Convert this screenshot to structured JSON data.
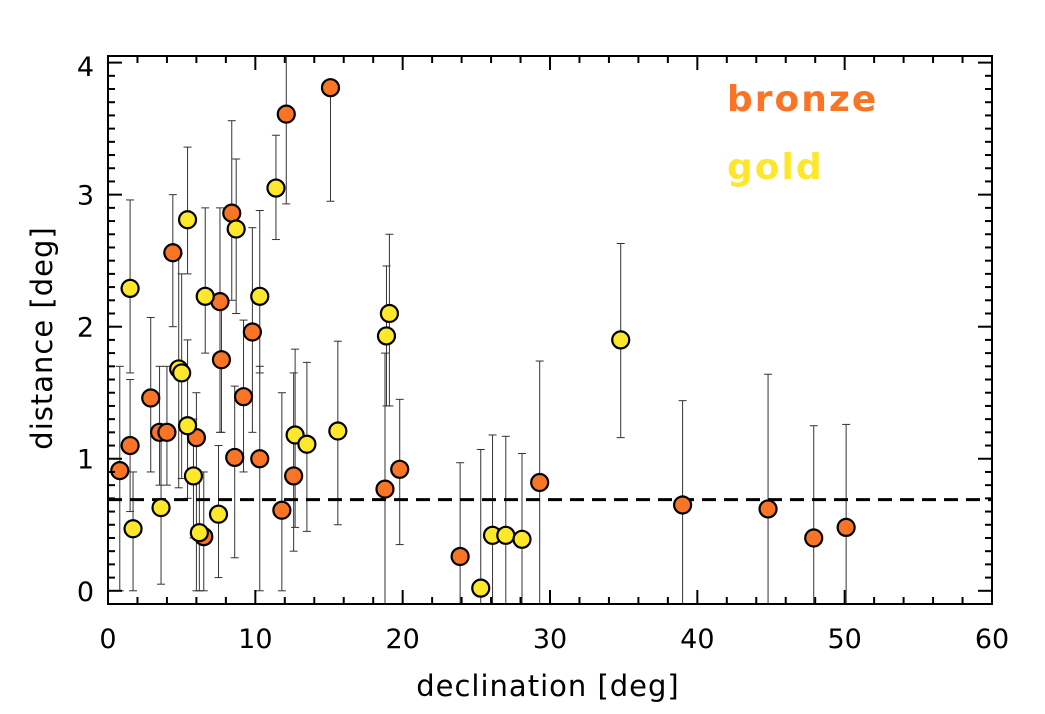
{
  "chart_data": {
    "type": "scatter",
    "title": "",
    "xlabel": "declination [deg]",
    "ylabel": "distance [deg]",
    "xlim": [
      0,
      60
    ],
    "ylim": [
      -0.1,
      4.05
    ],
    "xticks": [
      0,
      10,
      20,
      30,
      40,
      50,
      60
    ],
    "yticks": [
      0,
      1,
      2,
      3,
      4
    ],
    "threshold_line": {
      "y": 0.69,
      "style": "dashed"
    },
    "legend": {
      "placement": "top-right"
    },
    "colors": {
      "bronze": "#F97424",
      "gold": "#FDE72A",
      "outline": "#000000",
      "errorbar": "#333333"
    },
    "series": [
      {
        "name": "bronze",
        "points": [
          {
            "x": 0.8,
            "y": 0.91,
            "lo": 0.0,
            "hi": 1.7
          },
          {
            "x": 1.5,
            "y": 1.1,
            "lo": 0.6,
            "hi": 1.6
          },
          {
            "x": 2.9,
            "y": 1.46,
            "lo": 0.9,
            "hi": 2.07
          },
          {
            "x": 3.5,
            "y": 1.2,
            "lo": 0.8,
            "hi": 1.7
          },
          {
            "x": 4.0,
            "y": 1.2,
            "lo": 0.8,
            "hi": 1.7
          },
          {
            "x": 4.4,
            "y": 2.56,
            "lo": 2.0,
            "hi": 3.0
          },
          {
            "x": 6.0,
            "y": 1.16,
            "lo": 0.0,
            "hi": 1.5
          },
          {
            "x": 6.5,
            "y": 0.41,
            "lo": 0.0,
            "hi": 0.9
          },
          {
            "x": 7.6,
            "y": 2.19,
            "lo": 1.2,
            "hi": 2.9
          },
          {
            "x": 7.7,
            "y": 1.75,
            "lo": 1.2,
            "hi": 2.2
          },
          {
            "x": 8.4,
            "y": 2.86,
            "lo": 2.2,
            "hi": 3.56
          },
          {
            "x": 8.6,
            "y": 1.01,
            "lo": 0.25,
            "hi": 1.55
          },
          {
            "x": 9.2,
            "y": 1.47,
            "lo": 0.9,
            "hi": 2.05
          },
          {
            "x": 9.8,
            "y": 1.96,
            "lo": 1.2,
            "hi": 2.75
          },
          {
            "x": 10.3,
            "y": 1.0,
            "lo": 0.0,
            "hi": 1.7
          },
          {
            "x": 11.8,
            "y": 0.61,
            "lo": 0.0,
            "hi": 1.5
          },
          {
            "x": 12.1,
            "y": 3.61,
            "lo": 2.93,
            "hi": 4.05
          },
          {
            "x": 12.6,
            "y": 0.87,
            "lo": 0.3,
            "hi": 1.65
          },
          {
            "x": 15.1,
            "y": 3.81,
            "lo": 2.95,
            "hi": 3.81
          },
          {
            "x": 18.8,
            "y": 0.77,
            "lo": -0.1,
            "hi": 1.8
          },
          {
            "x": 19.8,
            "y": 0.92,
            "lo": 0.35,
            "hi": 1.45
          },
          {
            "x": 23.9,
            "y": 0.26,
            "lo": -0.1,
            "hi": 0.97
          },
          {
            "x": 29.3,
            "y": 0.82,
            "lo": -0.1,
            "hi": 1.74
          },
          {
            "x": 39.0,
            "y": 0.65,
            "lo": -0.1,
            "hi": 1.44
          },
          {
            "x": 44.8,
            "y": 0.62,
            "lo": -0.1,
            "hi": 1.64
          },
          {
            "x": 47.9,
            "y": 0.4,
            "lo": -0.1,
            "hi": 1.25
          },
          {
            "x": 50.1,
            "y": 0.48,
            "lo": -0.1,
            "hi": 1.26
          }
        ]
      },
      {
        "name": "gold",
        "points": [
          {
            "x": 1.5,
            "y": 2.29,
            "lo": 1.65,
            "hi": 2.96
          },
          {
            "x": 1.7,
            "y": 0.47,
            "lo": 0.0,
            "hi": 0.9
          },
          {
            "x": 3.6,
            "y": 0.63,
            "lo": 0.05,
            "hi": 1.2
          },
          {
            "x": 4.8,
            "y": 1.68,
            "lo": 0.78,
            "hi": 2.55
          },
          {
            "x": 5.0,
            "y": 1.65,
            "lo": 0.85,
            "hi": 2.4
          },
          {
            "x": 5.4,
            "y": 1.25,
            "lo": 0.7,
            "hi": 1.9
          },
          {
            "x": 5.4,
            "y": 2.81,
            "lo": 2.4,
            "hi": 3.36
          },
          {
            "x": 5.8,
            "y": 0.87,
            "lo": 0.4,
            "hi": 1.3
          },
          {
            "x": 6.2,
            "y": 0.44,
            "lo": 0.0,
            "hi": 0.9
          },
          {
            "x": 6.6,
            "y": 2.23,
            "lo": 1.8,
            "hi": 2.9
          },
          {
            "x": 7.5,
            "y": 0.58,
            "lo": 0.1,
            "hi": 1.1
          },
          {
            "x": 8.7,
            "y": 2.74,
            "lo": 2.1,
            "hi": 3.27
          },
          {
            "x": 10.3,
            "y": 2.23,
            "lo": 1.65,
            "hi": 2.88
          },
          {
            "x": 11.4,
            "y": 3.05,
            "lo": 2.66,
            "hi": 3.45
          },
          {
            "x": 12.7,
            "y": 1.18,
            "lo": 0.48,
            "hi": 1.83
          },
          {
            "x": 13.5,
            "y": 1.11,
            "lo": 0.45,
            "hi": 1.73
          },
          {
            "x": 15.6,
            "y": 1.21,
            "lo": 0.5,
            "hi": 1.89
          },
          {
            "x": 18.9,
            "y": 1.93,
            "lo": 1.4,
            "hi": 2.46
          },
          {
            "x": 19.1,
            "y": 2.1,
            "lo": 1.4,
            "hi": 2.7
          },
          {
            "x": 25.3,
            "y": 0.02,
            "lo": -0.1,
            "hi": 1.07
          },
          {
            "x": 26.1,
            "y": 0.42,
            "lo": -0.1,
            "hi": 1.18
          },
          {
            "x": 27.0,
            "y": 0.42,
            "lo": -0.1,
            "hi": 1.17
          },
          {
            "x": 28.1,
            "y": 0.39,
            "lo": -0.1,
            "hi": 1.04
          },
          {
            "x": 34.8,
            "y": 1.9,
            "lo": 1.16,
            "hi": 2.63
          }
        ]
      }
    ]
  }
}
